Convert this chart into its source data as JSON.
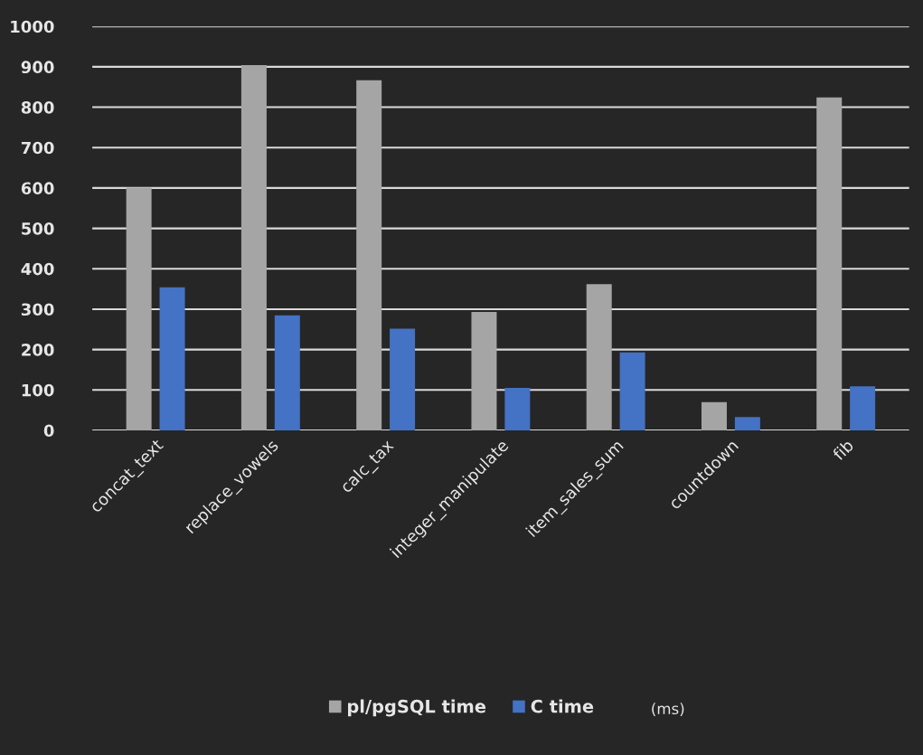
{
  "chart_data": {
    "type": "bar",
    "categories": [
      "concat_text",
      "replace_vowels",
      "calc_tax",
      "integer_manipulate",
      "item_sales_sum",
      "countdown",
      "fib"
    ],
    "series": [
      {
        "name": "pl/pgSQL time",
        "color": "#a5a5a5",
        "values": [
          601,
          904,
          867,
          293,
          362,
          70,
          824
        ]
      },
      {
        "name": "C time",
        "color": "#4472c4",
        "values": [
          354,
          285,
          252,
          105,
          193,
          33,
          109
        ]
      }
    ],
    "ylim": [
      0,
      1000
    ],
    "yticks": [
      0,
      100,
      200,
      300,
      400,
      500,
      600,
      700,
      800,
      900,
      1000
    ],
    "grid": "y",
    "legend": "bottom",
    "annotations": [
      "(ms)"
    ]
  }
}
